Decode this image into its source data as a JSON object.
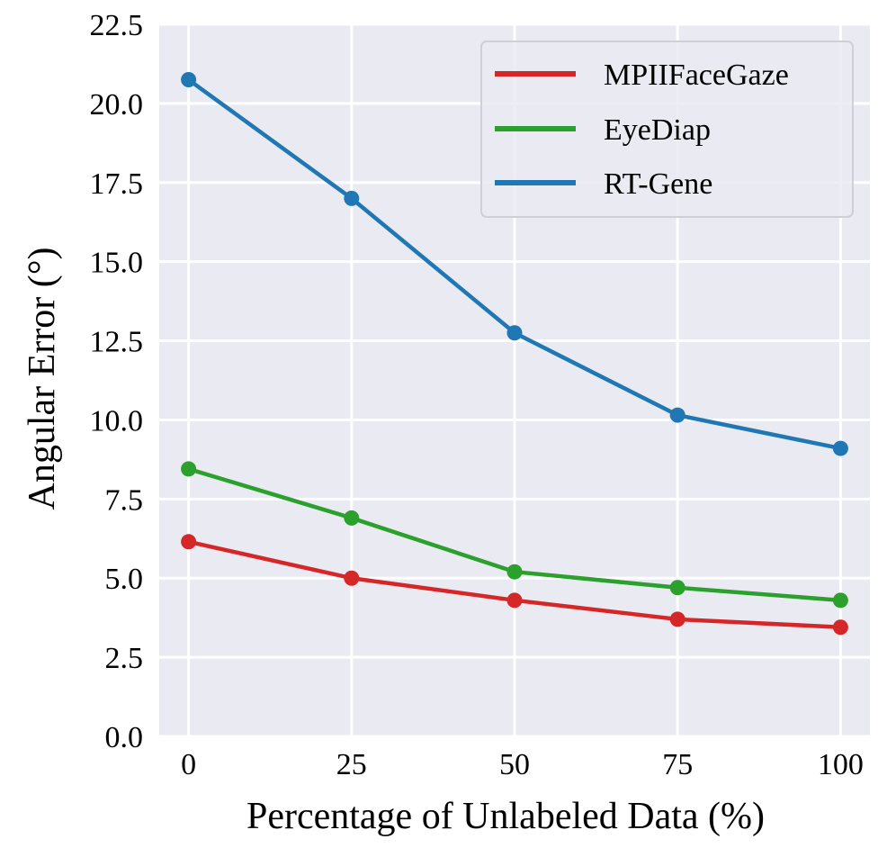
{
  "chart_data": {
    "type": "line",
    "xlabel": "Percentage of Unlabeled Data (%)",
    "ylabel": "Angular Error (°)",
    "x": [
      0,
      25,
      50,
      75,
      100
    ],
    "x_tick_labels": [
      "0",
      "25",
      "50",
      "75",
      "100"
    ],
    "ylim": [
      0,
      22.5
    ],
    "y_ticks": [
      0,
      2.5,
      5,
      7.5,
      10,
      12.5,
      15,
      17.5,
      20,
      22.5
    ],
    "y_tick_labels": [
      "0.0",
      "2.5",
      "5.0",
      "7.5",
      "10.0",
      "12.5",
      "15.0",
      "17.5",
      "20.0",
      "22.5"
    ],
    "grid": true,
    "legend_position": "top-right",
    "series": [
      {
        "name": "MPIIFaceGaze",
        "color": "#d62728",
        "values": [
          6.15,
          5.0,
          4.3,
          3.7,
          3.45
        ]
      },
      {
        "name": "EyeDiap",
        "color": "#2ca02c",
        "values": [
          8.45,
          6.9,
          5.2,
          4.7,
          4.3
        ]
      },
      {
        "name": "RT-Gene",
        "color": "#1f77b4",
        "values": [
          20.75,
          17.0,
          12.75,
          10.15,
          9.1
        ]
      }
    ],
    "plot_background": "#eaeaf2"
  }
}
